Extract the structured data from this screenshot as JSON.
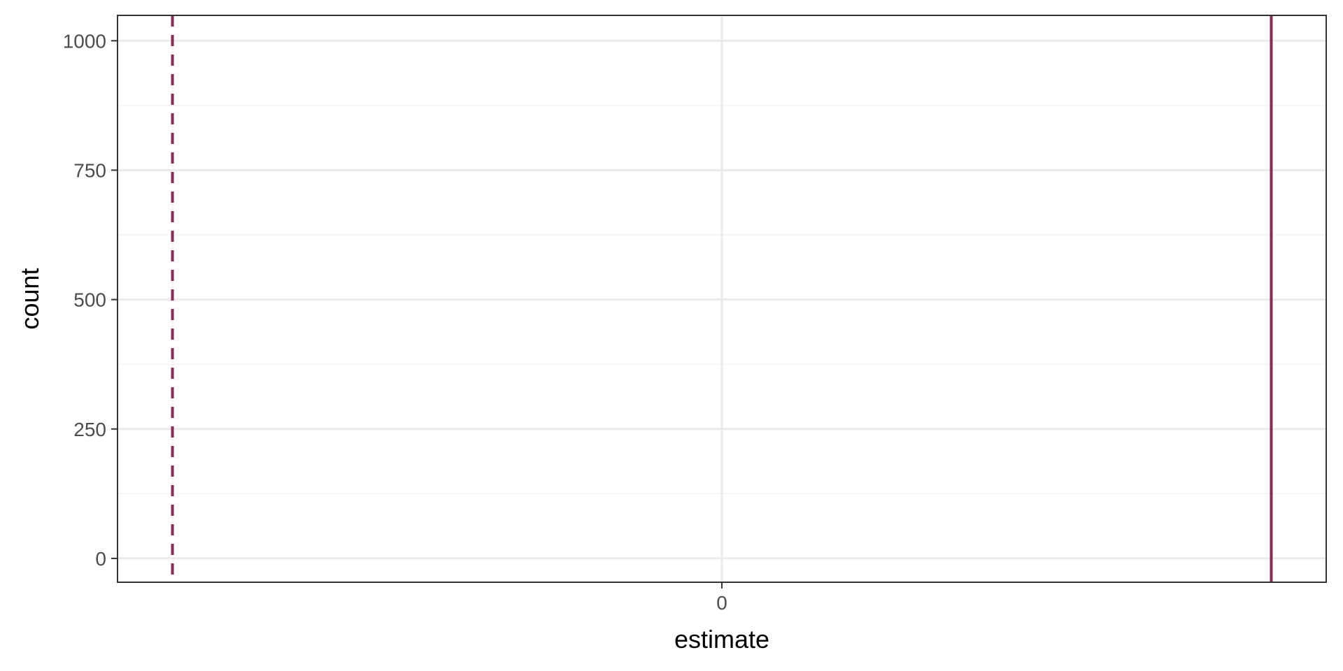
{
  "chart_data": {
    "type": "histogram",
    "title": "",
    "xlabel": "estimate",
    "ylabel": "count",
    "x_ticks": [
      0
    ],
    "x_tick_labels": [
      "0"
    ],
    "xlim": [
      -1.1,
      1.1
    ],
    "y_ticks": [
      0,
      250,
      500,
      750,
      1000
    ],
    "y_tick_labels": [
      "0",
      "250",
      "500",
      "750",
      "1000"
    ],
    "ylim": [
      -46,
      1049
    ],
    "bars": [],
    "reference_lines": [
      {
        "orientation": "vertical",
        "x": -1,
        "style": "dashed",
        "color": "#8b2a57"
      },
      {
        "orientation": "vertical",
        "x": 1,
        "style": "solid",
        "color": "#8b2a57"
      }
    ],
    "grid": true,
    "legend": "none"
  },
  "colors": {
    "reference_line": "#8b2a57",
    "grid_major": "#ebebeb",
    "grid_minor": "#f2f2f2",
    "panel_border": "#333333",
    "tick_text": "#4d4d4d",
    "axis_title": "#000000"
  }
}
